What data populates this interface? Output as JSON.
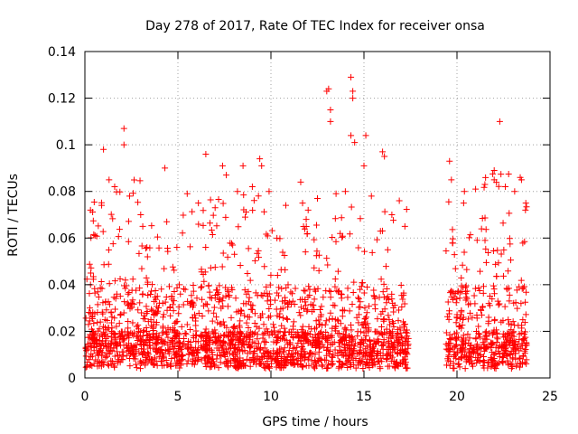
{
  "chart_data": {
    "type": "scatter",
    "title": "Day 278 of 2017, Rate Of TEC Index for receiver onsa",
    "xlabel": "GPS time / hours",
    "ylabel": "ROTI / TECUs",
    "xlim": [
      0,
      25
    ],
    "ylim": [
      0,
      0.14
    ],
    "xticks": [
      0,
      5,
      10,
      15,
      20,
      25
    ],
    "xtick_labels": [
      "0",
      "5",
      "10",
      "15",
      "20",
      "25"
    ],
    "yticks": [
      0,
      0.02,
      0.04,
      0.06,
      0.08,
      0.1,
      0.12,
      0.14
    ],
    "ytick_labels": [
      "0",
      "0.02",
      "0.04",
      "0.06",
      "0.08",
      "0.1",
      "0.12",
      "0.14"
    ],
    "grid": true,
    "marker": "+",
    "color": "#ff0000",
    "data_gap_hours": [
      17.4,
      19.4
    ],
    "series": [
      {
        "name": "ROTI",
        "x": [
          1.0,
          2.1,
          2.1,
          4.3,
          6.5,
          7.4,
          8.5,
          9.4,
          9.5,
          11.6,
          13.0,
          13.1,
          13.2,
          13.2,
          14.3,
          14.4,
          14.4,
          14.3,
          14.5,
          15.1,
          15.0,
          16.0,
          16.1,
          19.6,
          22.3,
          22.0,
          23.4,
          0.3,
          0.9,
          1.3,
          1.6,
          2.4,
          3.0,
          4.4,
          5.5,
          6.1,
          7.0,
          7.6,
          8.2,
          9.0,
          9.9,
          10.8,
          11.7,
          12.0,
          12.5,
          13.5,
          14.0,
          15.4,
          16.5,
          16.9,
          17.2,
          19.7,
          20.4,
          21.0,
          21.5,
          22.0,
          22.6,
          23.1,
          23.7
        ],
        "y": [
          0.098,
          0.107,
          0.1,
          0.09,
          0.096,
          0.091,
          0.091,
          0.094,
          0.091,
          0.084,
          0.123,
          0.124,
          0.115,
          0.11,
          0.129,
          0.123,
          0.12,
          0.104,
          0.101,
          0.104,
          0.091,
          0.097,
          0.095,
          0.093,
          0.11,
          0.089,
          0.086,
          0.072,
          0.074,
          0.085,
          0.082,
          0.078,
          0.07,
          0.067,
          0.079,
          0.075,
          0.073,
          0.087,
          0.08,
          0.082,
          0.08,
          0.074,
          0.075,
          0.072,
          0.077,
          0.079,
          0.08,
          0.078,
          0.07,
          0.076,
          0.065,
          0.085,
          0.08,
          0.081,
          0.083,
          0.085,
          0.082,
          0.08,
          0.075
        ]
      }
    ]
  }
}
